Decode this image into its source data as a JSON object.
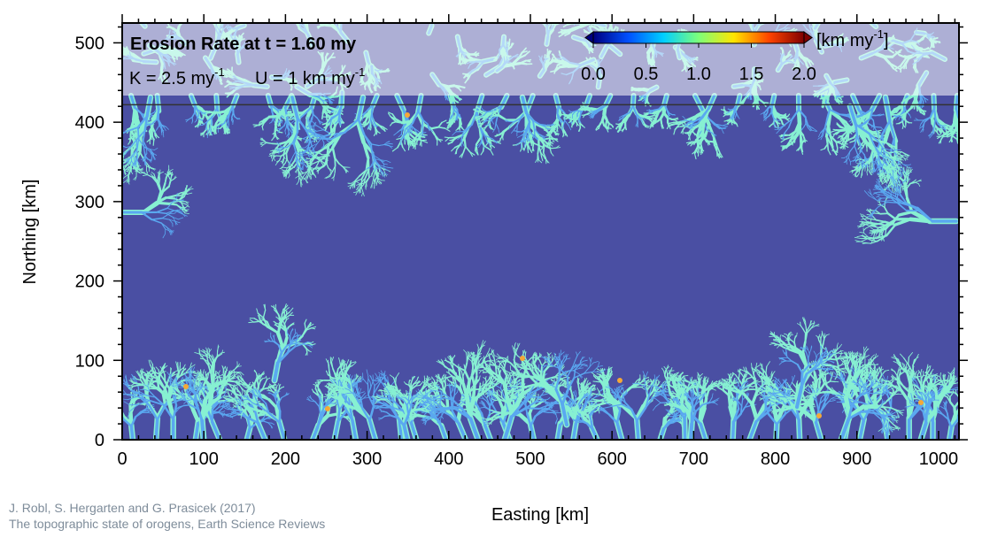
{
  "chart_data": {
    "type": "heatmap",
    "title": "Erosion Rate at t = 1.60 my",
    "params": [
      {
        "base": "K = 2.5 my",
        "sup": "-1"
      },
      {
        "base": "U = 1 km my",
        "sup": "-1"
      }
    ],
    "xlabel": "Easting [km]",
    "ylabel": "Northing [km]",
    "xlim": [
      0,
      1025
    ],
    "ylim": [
      0,
      525
    ],
    "xticks": [
      0,
      100,
      200,
      300,
      400,
      500,
      600,
      700,
      800,
      900,
      1000
    ],
    "yticks": [
      0,
      100,
      200,
      300,
      400,
      500
    ],
    "header_boundary_y": 422,
    "colorbar": {
      "unit_prefix": "[km my",
      "unit_sup": "-1",
      "unit_suffix": "]",
      "ticks": [
        "0.0",
        "0.5",
        "1.0",
        "1.5",
        "2.0"
      ],
      "range": [
        0,
        2
      ],
      "colors": [
        "#00007f",
        "#0050ff",
        "#00cfff",
        "#7dff7a",
        "#ffe500",
        "#ff4400",
        "#7f0000"
      ]
    },
    "background_value": 0.15,
    "colors": {
      "background": "#4a4fa3",
      "channel_low": "#5aa8f0",
      "channel_high": "#87f0d2",
      "hotspot": "#f4a838"
    }
  },
  "credit": {
    "line1": "J. Robl, S. Hergarten and G. Prasicek (2017)",
    "line2": "The topographic state of orogens, Earth Science Reviews"
  }
}
